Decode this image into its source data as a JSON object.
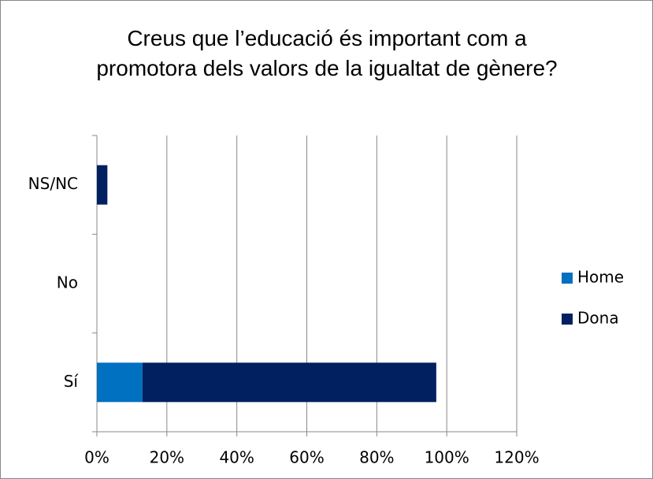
{
  "chart_data": {
    "type": "stacked-barh",
    "title": "Creus que l’educació és important com a promotora dels valors de la igualtat de gènere?",
    "categories": [
      "Sí",
      "No",
      "NS/NC"
    ],
    "series": [
      {
        "name": "Home",
        "color": "#0070c0",
        "values": [
          13,
          0,
          0
        ]
      },
      {
        "name": "Dona",
        "color": "#002060",
        "values": [
          84,
          0,
          3
        ]
      }
    ],
    "xlim": [
      0,
      120
    ],
    "xticks": [
      {
        "value": 0,
        "label": "0%"
      },
      {
        "value": 20,
        "label": "20%"
      },
      {
        "value": 40,
        "label": "40%"
      },
      {
        "value": 60,
        "label": "60%"
      },
      {
        "value": 80,
        "label": "80%"
      },
      {
        "value": 100,
        "label": "100%"
      },
      {
        "value": 120,
        "label": "120%"
      }
    ],
    "grid": true,
    "legend": "right"
  }
}
